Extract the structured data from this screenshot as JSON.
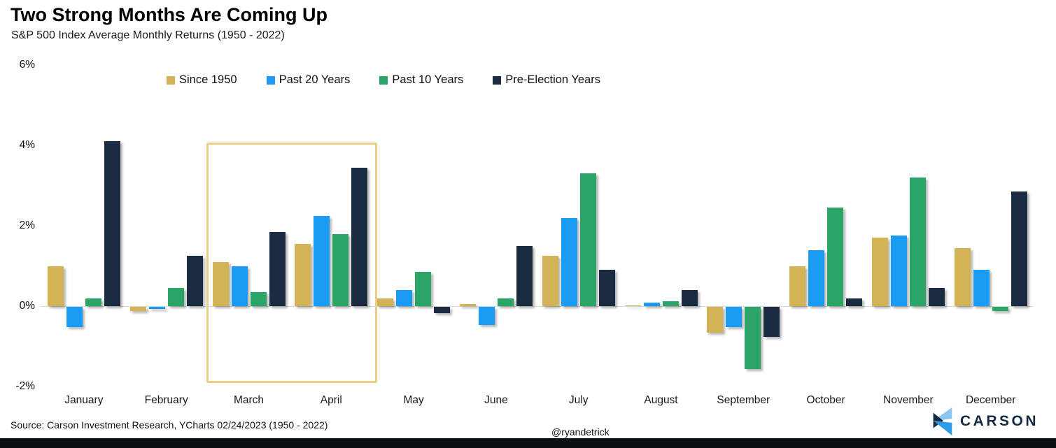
{
  "header": {
    "title": "Two Strong Months Are Coming Up",
    "subtitle": "S&P 500 Index Average Monthly Returns (1950 - 2022)"
  },
  "chart_data": {
    "type": "bar",
    "title": "Two Strong Months Are Coming Up",
    "subtitle": "S&P 500 Index Average Monthly Returns (1950 - 2022)",
    "categories": [
      "January",
      "February",
      "March",
      "April",
      "May",
      "June",
      "July",
      "August",
      "September",
      "October",
      "November",
      "December"
    ],
    "series": [
      {
        "name": "Since 1950",
        "color": "#D2B356",
        "values": [
          1.0,
          -0.1,
          1.1,
          1.55,
          0.2,
          0.05,
          1.25,
          0.02,
          -0.65,
          1.0,
          1.7,
          1.45
        ]
      },
      {
        "name": "Past 20 Years",
        "color": "#1B9CF2",
        "values": [
          -0.5,
          -0.05,
          1.0,
          2.25,
          0.4,
          -0.45,
          2.2,
          0.08,
          -0.5,
          1.4,
          1.75,
          0.9
        ]
      },
      {
        "name": "Past 10 Years",
        "color": "#2BA468",
        "values": [
          0.2,
          0.45,
          0.35,
          1.8,
          0.85,
          0.2,
          3.3,
          0.12,
          -1.55,
          2.45,
          3.2,
          -0.1
        ]
      },
      {
        "name": "Pre-Election Years",
        "color": "#1B2B42",
        "values": [
          4.1,
          1.25,
          1.85,
          3.45,
          -0.15,
          1.5,
          0.9,
          0.4,
          -0.75,
          0.2,
          0.45,
          2.85
        ]
      }
    ],
    "ylim": [
      -2,
      6
    ],
    "ytick_labels": [
      "6%",
      "4%",
      "2%",
      "0%",
      "-2%"
    ],
    "ytick_values": [
      6,
      4,
      2,
      0,
      -2
    ],
    "grid": "zero-line-only",
    "legend_position": "top",
    "highlight": {
      "from": "March",
      "to": "April",
      "border_color": "#EBD084"
    }
  },
  "footer": {
    "source": "Source: Carson Investment Research, YCharts 02/24/2023 (1950 - 2022)",
    "handle": "@ryandetrick",
    "brand": "CARSON"
  }
}
